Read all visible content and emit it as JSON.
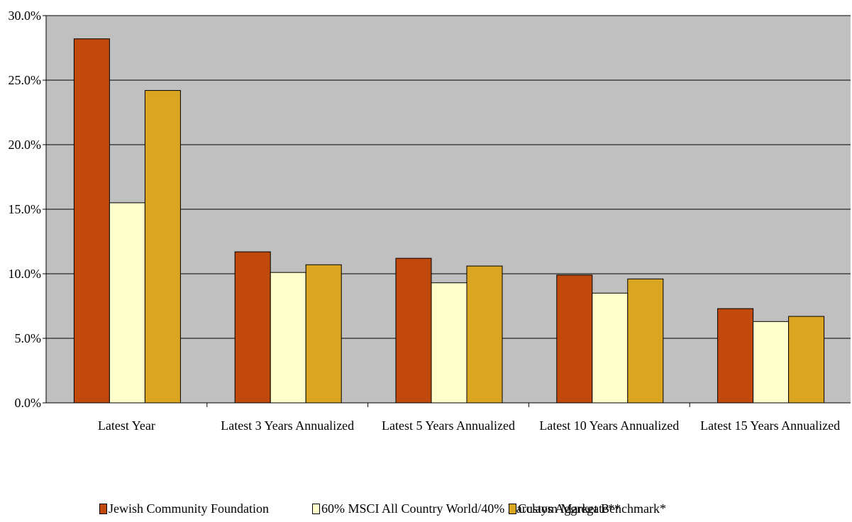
{
  "chart_data": {
    "type": "bar",
    "title": "",
    "xlabel": "",
    "ylabel": "",
    "categories": [
      "Latest Year",
      "Latest 3 Years Annualized",
      "Latest 5 Years Annualized",
      "Latest 10 Years Annualized",
      "Latest 15 Years Annualized"
    ],
    "series": [
      {
        "name": "Jewish Community Foundation",
        "color": "#c0490b",
        "values": [
          28.2,
          11.7,
          11.2,
          9.9,
          7.3
        ]
      },
      {
        "name": "60% MSCI All Country World/40% Barclays Aggregate**",
        "color": "#ffffcc",
        "values": [
          15.5,
          10.1,
          9.3,
          8.5,
          6.3
        ]
      },
      {
        "name": "Custom Market Benchmark*",
        "color": "#daa520",
        "values": [
          24.2,
          10.7,
          10.6,
          9.6,
          6.7
        ]
      }
    ],
    "ylim": [
      0,
      30
    ],
    "yticks": [
      0,
      5,
      10,
      15,
      20,
      25,
      30
    ],
    "ytick_labels": [
      "0.0%",
      "5.0%",
      "10.0%",
      "15.0%",
      "20.0%",
      "25.0%",
      "30.0%"
    ],
    "grid": true,
    "plot_background": "#c0c0c0",
    "legend_position": "bottom"
  }
}
